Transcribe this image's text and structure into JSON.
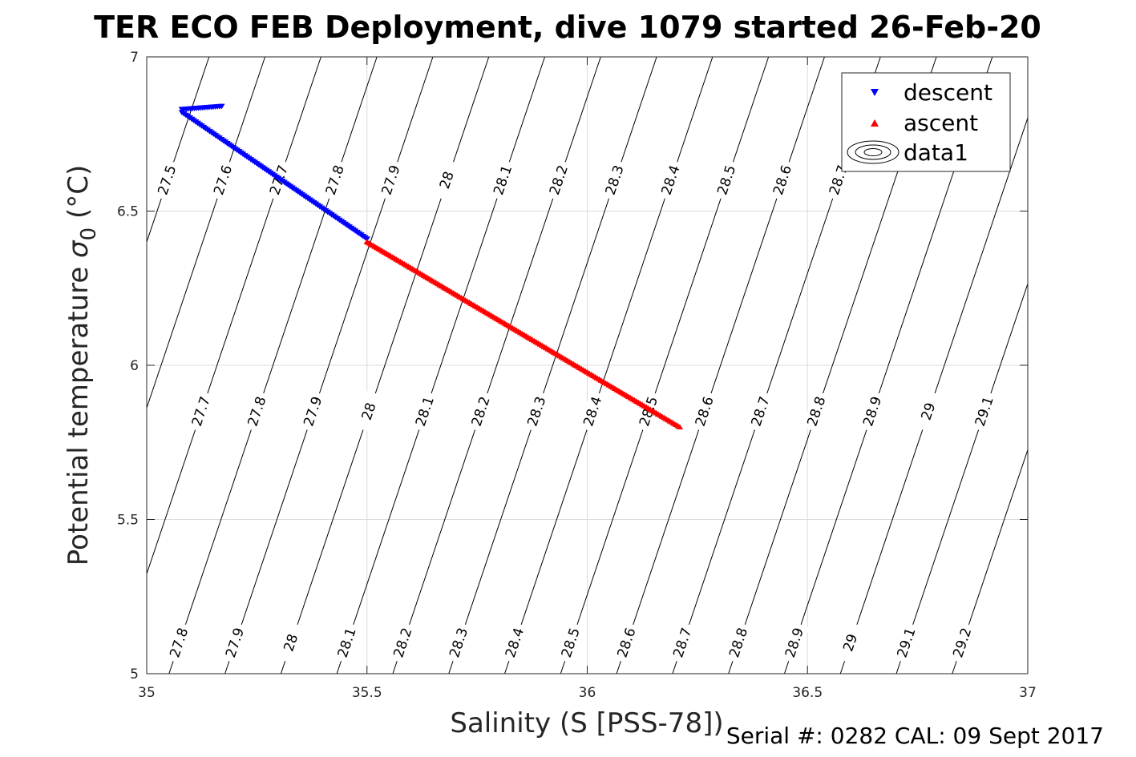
{
  "title": "TER ECO FEB Deployment, dive 1079 started 26-Feb-20",
  "footer": "Serial #: 0282  CAL: 09 Sept 2017",
  "chart_data": {
    "type": "scatter",
    "xlabel": "Salinity (S [PSS-78])",
    "ylabel_main": "Potential temperature ",
    "ylabel_sym": "σ",
    "ylabel_sub": "0",
    "ylabel_unit": " (°C)",
    "xlim": [
      35,
      37
    ],
    "ylim": [
      5,
      7
    ],
    "xticks": [
      35,
      35.5,
      36,
      36.5,
      37
    ],
    "xtick_labels": [
      "35",
      "35.5",
      "36",
      "36.5",
      "37"
    ],
    "yticks": [
      5,
      5.5,
      6,
      6.5,
      7
    ],
    "ytick_labels": [
      "5",
      "5.5",
      "6",
      "6.5",
      "7"
    ],
    "grid": true,
    "legend_position": "top-right",
    "legend": [
      "descent",
      "ascent",
      "data1"
    ],
    "series": [
      {
        "name": "descent",
        "marker": "triangle-down",
        "color": "#0000ff",
        "segments": [
          {
            "x_start": 35.08,
            "y_start": 6.83,
            "x_end": 35.17,
            "y_end": 6.84,
            "points": 20
          },
          {
            "x_start": 35.08,
            "y_start": 6.82,
            "x_end": 35.5,
            "y_end": 6.41,
            "points": 95
          }
        ]
      },
      {
        "name": "ascent",
        "marker": "triangle-up",
        "color": "#ff0000",
        "segments": [
          {
            "x_start": 35.5,
            "y_start": 6.4,
            "x_end": 36.21,
            "y_end": 5.8,
            "points": 160
          }
        ]
      }
    ],
    "density_contours": {
      "name": "data1",
      "levels": [
        27.5,
        27.6,
        27.7,
        27.8,
        27.9,
        28,
        28.1,
        28.2,
        28.3,
        28.4,
        28.5,
        28.6,
        28.7,
        28.8,
        28.9,
        29,
        29.1,
        29.2
      ],
      "level_labels": [
        "27.5",
        "27.6",
        "27.7",
        "27.8",
        "27.9",
        "28",
        "28.1",
        "28.2",
        "28.3",
        "28.4",
        "28.5",
        "28.6",
        "28.7",
        "28.8",
        "28.9",
        "29",
        "29.1",
        "29.2"
      ],
      "reference": {
        "level": 27.5,
        "salinity": 35.0,
        "temperature": 6.4
      },
      "salinity_per_level": 0.127,
      "dS_dT": 0.236,
      "label_rows": [
        {
          "temperature": 6.6,
          "levels": [
            27.5,
            27.6,
            27.7,
            27.8,
            27.9,
            28,
            28.1,
            28.2,
            28.3,
            28.4,
            28.5,
            28.6,
            28.7
          ]
        },
        {
          "temperature": 5.85,
          "levels": [
            27.6,
            27.7,
            27.8,
            27.9,
            28,
            28.1,
            28.2,
            28.3,
            28.4,
            28.5,
            28.6,
            28.7,
            28.8,
            28.9,
            29,
            29.1
          ]
        },
        {
          "temperature": 5.1,
          "levels": [
            27.7,
            27.8,
            27.9,
            28,
            28.1,
            28.2,
            28.3,
            28.4,
            28.5,
            28.6,
            28.7,
            28.8,
            28.9,
            29,
            29.1,
            29.2
          ]
        }
      ]
    }
  }
}
